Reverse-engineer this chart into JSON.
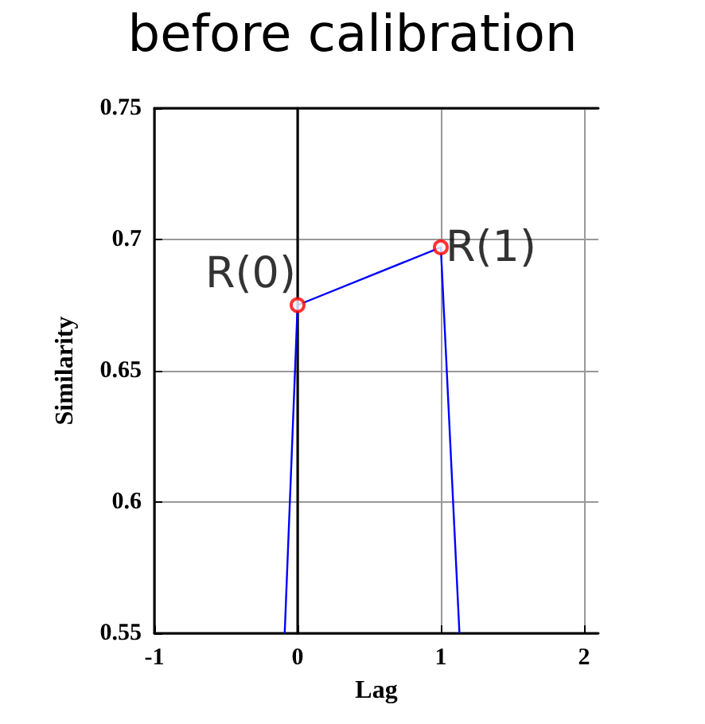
{
  "chart_data": {
    "type": "line",
    "title": "before calibration",
    "xlabel": "Lag",
    "ylabel": "Similarity",
    "series": [
      {
        "color": "#0000ff",
        "marker": "none",
        "x": [
          -0.09,
          0,
          1,
          1.13
        ],
        "values": [
          0.55,
          0.675,
          0.697,
          0.55
        ]
      },
      {
        "type": "scatter",
        "color": "#ff0000",
        "marker": "circle",
        "x": [
          0,
          1
        ],
        "values": [
          0.675,
          0.697
        ]
      }
    ],
    "annotations": [
      {
        "text": "R(0)",
        "x": 0,
        "y": 0.675
      },
      {
        "text": "R(1)",
        "x": 1,
        "y": 0.697
      }
    ],
    "xlim": [
      -1,
      2.1
    ],
    "xticks": [
      -1,
      0,
      1,
      2
    ],
    "ylim": [
      0.55,
      0.75
    ],
    "yticks": [
      0.55,
      0.6,
      0.65,
      0.7,
      0.75
    ],
    "grid": true
  }
}
